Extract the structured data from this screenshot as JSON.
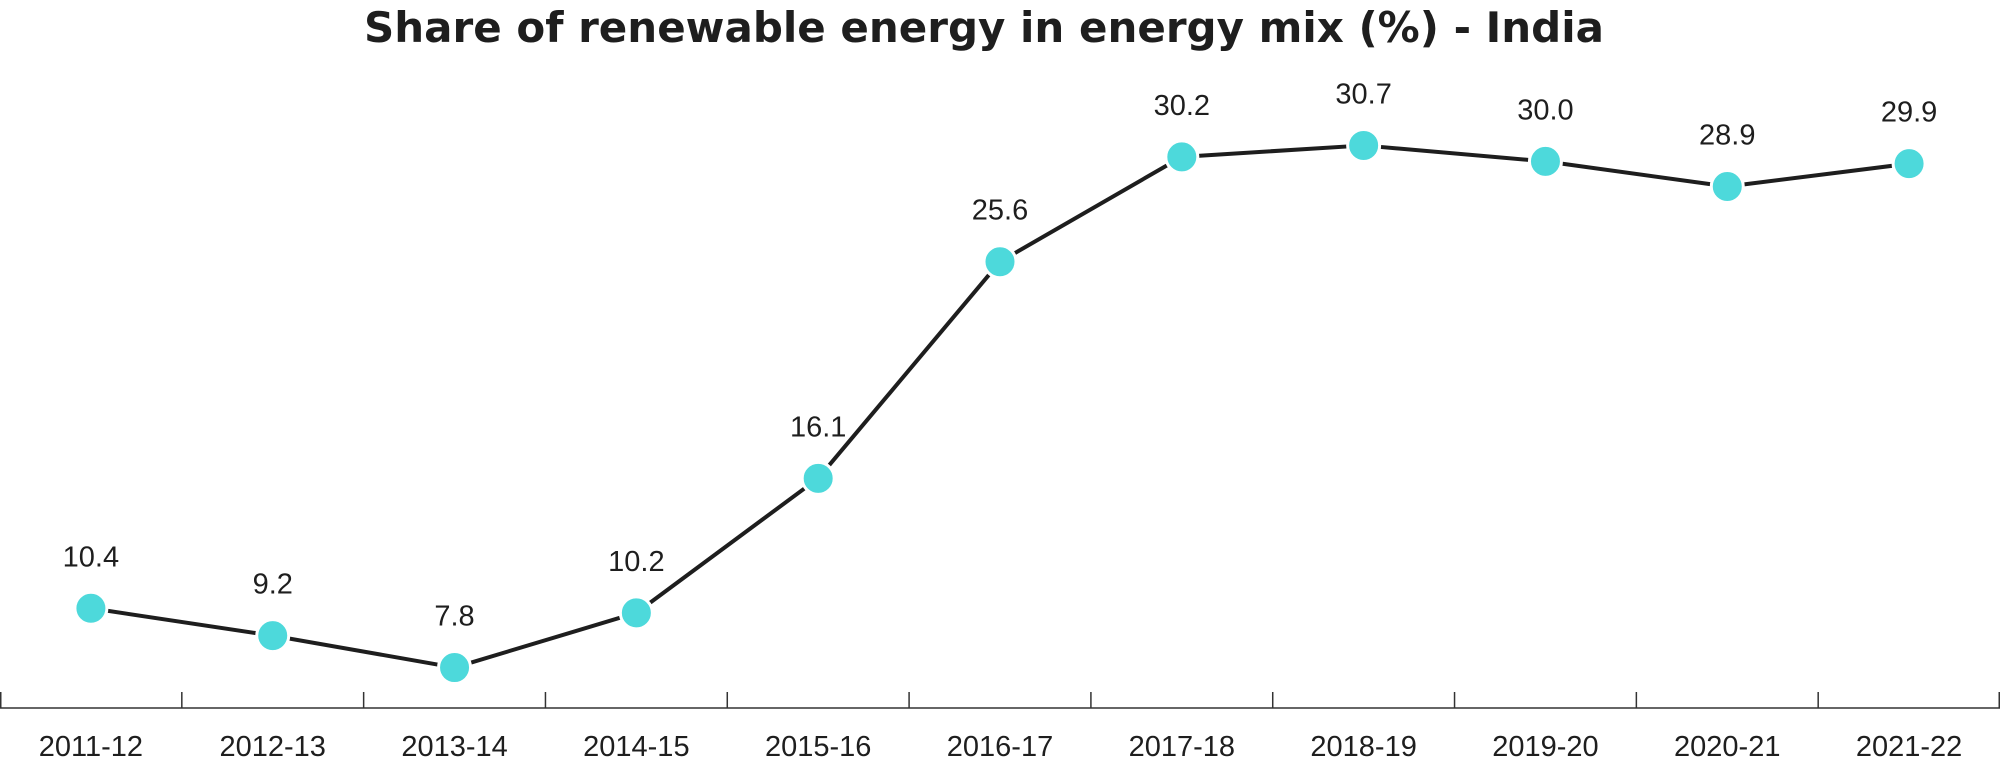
{
  "chart_data": {
    "type": "line",
    "title": "Share of renewable energy in energy mix (%) - India",
    "xlabel": "",
    "ylabel": "",
    "categories": [
      "2011-12",
      "2012-13",
      "2013-14",
      "2014-15",
      "2015-16",
      "2016-17",
      "2017-18",
      "2018-19",
      "2019-20",
      "2020-21",
      "2021-22"
    ],
    "series": [
      {
        "values": [
          10.4,
          9.2,
          7.8,
          10.2,
          16.1,
          25.6,
          30.2,
          30.7,
          30.0,
          28.9,
          29.9
        ],
        "data_labels": [
          "10.4",
          "9.2",
          "7.8",
          "10.2",
          "16.1",
          "25.6",
          "30.2",
          "30.7",
          "30.0",
          "28.9",
          "29.9"
        ]
      }
    ],
    "grid": false,
    "legend": "none",
    "colors": {
      "marker": "#4dd9db",
      "line": "#1e1e1e",
      "text": "#1e1e1e",
      "axis": "#333333"
    }
  }
}
